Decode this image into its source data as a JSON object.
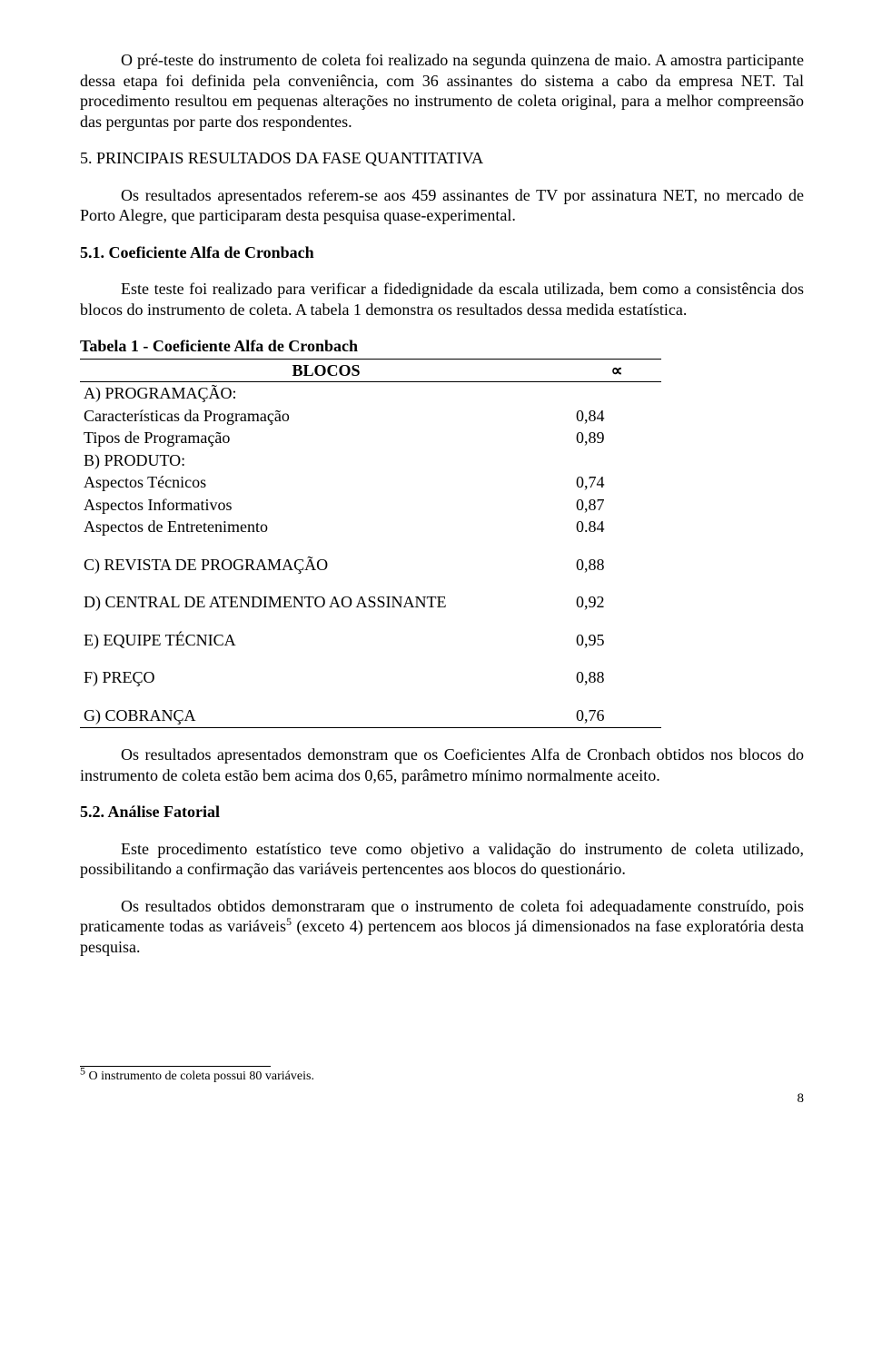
{
  "p1": "O pré-teste do instrumento de coleta foi realizado na segunda quinzena de maio. A amostra participante dessa etapa foi definida pela conveniência, com 36 assinantes do sistema a cabo da empresa NET. Tal procedimento resultou em pequenas alterações no instrumento de coleta original, para a melhor compreensão das perguntas por parte dos respondentes.",
  "h5": "5. PRINCIPAIS RESULTADOS DA FASE QUANTITATIVA",
  "p2": "Os resultados apresentados referem-se aos 459 assinantes de TV por assinatura NET, no mercado de Porto Alegre, que participaram desta pesquisa quase-experimental.",
  "h51": "5.1. Coeficiente Alfa de Cronbach",
  "p3": "Este teste foi realizado para verificar a fidedignidade da escala utilizada, bem como a consistência dos blocos do instrumento de coleta. A tabela 1 demonstra os resultados dessa medida estatística.",
  "table": {
    "caption": "Tabela 1 - Coeficiente Alfa de Cronbach",
    "h_blocos": "BLOCOS",
    "h_alpha": "∝",
    "rows": {
      "a_hdr": "A) PROGRAMAÇÃO:",
      "a1_lbl": "Características da Programação",
      "a1_val": "0,84",
      "a2_lbl": "Tipos de Programação",
      "a2_val": "0,89",
      "b_hdr": "B) PRODUTO:",
      "b1_lbl": "Aspectos Técnicos",
      "b1_val": "0,74",
      "b2_lbl": "Aspectos Informativos",
      "b2_val": "0,87",
      "b3_lbl": "Aspectos de Entretenimento",
      "b3_val": "0.84",
      "c_lbl": "C) REVISTA DE PROGRAMAÇÃO",
      "c_val": "0,88",
      "d_lbl": "D) CENTRAL DE ATENDIMENTO AO ASSINANTE",
      "d_val": "0,92",
      "e_lbl": "E) EQUIPE TÉCNICA",
      "e_val": "0,95",
      "f_lbl": "F) PREÇO",
      "f_val": "0,88",
      "g_lbl": "G) COBRANÇA",
      "g_val": "0,76"
    }
  },
  "p4": "Os resultados apresentados demonstram que os Coeficientes Alfa de Cronbach obtidos nos blocos do instrumento de coleta estão bem acima dos 0,65, parâmetro mínimo normalmente aceito.",
  "h52": "5.2. Análise Fatorial",
  "p5": "Este procedimento estatístico teve como objetivo a validação do instrumento de coleta utilizado, possibilitando a confirmação das variáveis pertencentes aos blocos do questionário.",
  "p6a": "Os resultados obtidos demonstraram que o instrumento de coleta foi adequadamente construído, pois praticamente todas as variáveis",
  "p6sup": "5",
  "p6b": " (exceto 4) pertencem aos blocos já dimensionados na fase exploratória desta pesquisa.",
  "fn_sup": "5",
  "fn": " O instrumento de coleta possui 80 variáveis.",
  "page": "8"
}
